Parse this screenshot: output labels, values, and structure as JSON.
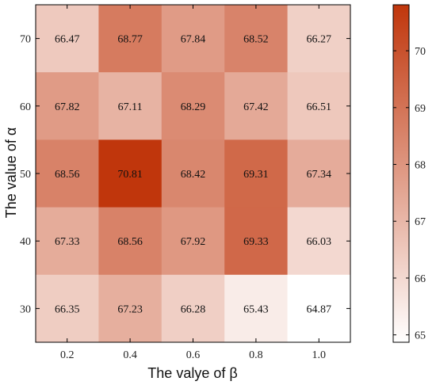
{
  "chart_data": {
    "type": "heatmap",
    "xlabel": "The valye of β",
    "ylabel": "The value of α",
    "x_categories": [
      "0.2",
      "0.4",
      "0.6",
      "0.8",
      "1.0"
    ],
    "y_categories": [
      "70",
      "60",
      "50",
      "40",
      "30"
    ],
    "values": [
      [
        66.47,
        68.77,
        67.84,
        68.52,
        66.27
      ],
      [
        67.82,
        67.11,
        68.29,
        67.42,
        66.51
      ],
      [
        68.56,
        70.81,
        68.42,
        69.31,
        67.34
      ],
      [
        67.33,
        68.56,
        67.92,
        69.33,
        66.03
      ],
      [
        66.35,
        67.23,
        66.28,
        65.43,
        64.87
      ]
    ],
    "cell_labels": [
      [
        "66.47",
        "68.77",
        "67.84",
        "68.52",
        "66.27"
      ],
      [
        "67.82",
        "67.11",
        "68.29",
        "67.42",
        "66.51"
      ],
      [
        "68.56",
        "70.81",
        "68.42",
        "69.31",
        "67.34"
      ],
      [
        "67.33",
        "68.56",
        "67.92",
        "69.33",
        "66.03"
      ],
      [
        "66.35",
        "67.23",
        "66.28",
        "65.43",
        "64.87"
      ]
    ],
    "colorbar": {
      "range": [
        64.87,
        70.81
      ],
      "ticks": [
        "65",
        "66",
        "67",
        "68",
        "69",
        "70"
      ],
      "tick_values": [
        65,
        66,
        67,
        68,
        69,
        70
      ],
      "color_low": "#ffffff",
      "color_high": "#c0360c"
    }
  }
}
